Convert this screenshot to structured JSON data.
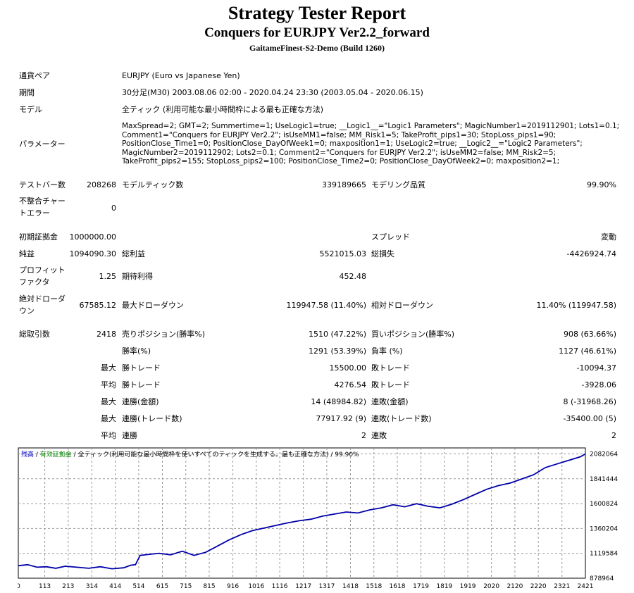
{
  "header": {
    "title": "Strategy Tester Report",
    "subtitle": "Conquers for EURJPY Ver2.2_forward",
    "server": "GaitameFinest-S2-Demo (Build 1260)"
  },
  "info": {
    "pair_label": "通貨ペア",
    "pair_value": "EURJPY (Euro vs Japanese Yen)",
    "period_label": "期間",
    "period_value": "30分足(M30) 2003.08.06 02:00 - 2020.04.24 23:30 (2003.05.04 - 2020.06.15)",
    "model_label": "モデル",
    "model_value": "全ティック (利用可能な最小時間枠による最も正確な方法)",
    "params_label": "パラメーター",
    "params_value": "MaxSpread=2; GMT=2; Summertime=1; UseLogic1=true; __Logic1__=\"Logic1 Parameters\"; MagicNumber1=2019112901; Lots1=0.1; Comment1=\"Conquers for EURJPY Ver2.2\"; isUseMM1=false; MM_Risk1=5; TakeProfit_pips1=30; StopLoss_pips1=90; PositionClose_Time1=0; PositionClose_DayOfWeek1=0; maxposition1=1; UseLogic2=true; __Logic2__=\"Logic2 Parameters\"; MagicNumber2=2019112902; Lots2=0.1; Comment2=\"Conquers for EURJPY Ver2.2\"; isUseMM2=false; MM_Risk2=5; TakeProfit_pips2=155; StopLoss_pips2=100; PositionClose_Time2=0; PositionClose_DayOfWeek2=0; maxposition2=1;"
  },
  "stats": {
    "bars_label": "テストバー数",
    "bars_value": "208268",
    "ticks_label": "モデルティック数",
    "ticks_value": "339189665",
    "quality_label": "モデリング品質",
    "quality_value": "99.90%",
    "mismatch_label_1": "不整合チャー",
    "mismatch_label_2": "トエラー",
    "mismatch_value": "0",
    "deposit_label": "初期証拠金",
    "deposit_value": "1000000.00",
    "spread_label": "スプレッド",
    "spread_value": "変動",
    "net_label": "純益",
    "net_value": "1094090.30",
    "gross_profit_label": "総利益",
    "gross_profit_value": "5521015.03",
    "gross_loss_label": "総損失",
    "gross_loss_value": "-4426924.74",
    "pf_label_1": "プロフィット",
    "pf_label_2": "ファクタ",
    "pf_value": "1.25",
    "expected_label": "期待利得",
    "expected_value": "452.48",
    "abs_dd_label_1": "絶対ドローダ",
    "abs_dd_label_2": "ウン",
    "abs_dd_value": "67585.12",
    "max_dd_label": "最大ドローダウン",
    "max_dd_value": "119947.58 (11.40%)",
    "rel_dd_label": "相対ドローダウン",
    "rel_dd_value": "11.40% (119947.58)",
    "trades_label": "総取引数",
    "trades_value": "2418",
    "short_label": "売りポジション(勝率%)",
    "short_value": "1510 (47.22%)",
    "long_label": "買いポジション(勝率%)",
    "long_value": "908 (63.66%)",
    "win_rate_label": "勝率(%)",
    "win_rate_value": "1291 (53.39%)",
    "loss_rate_label": "負率 (%)",
    "loss_rate_value": "1127 (46.61%)",
    "max_label": "最大",
    "avg_label": "平均",
    "win_trade_label": "勝トレード",
    "loss_trade_label": "敗トレード",
    "max_win_trade": "15500.00",
    "max_loss_trade": "-10094.37",
    "avg_win_trade": "4276.54",
    "avg_loss_trade": "-3928.06",
    "consec_win_amt_label": "連勝(金額)",
    "consec_win_amt_value": "14 (48984.82)",
    "consec_loss_amt_label": "連敗(金額)",
    "consec_loss_amt_value": "8 (-31968.26)",
    "consec_win_cnt_label": "連勝(トレード数)",
    "consec_win_cnt_value": "77917.92 (9)",
    "consec_loss_cnt_label": "連敗(トレード数)",
    "consec_loss_cnt_value": "-35400.00 (5)",
    "avg_win_streak_label": "連勝",
    "avg_win_streak_value": "2",
    "avg_loss_streak_label": "連敗",
    "avg_loss_streak_value": "2"
  },
  "chart_data": {
    "type": "line",
    "legend": {
      "balance": "残高",
      "sep1": " / ",
      "equity": "有効証拠金",
      "sep2": " / ",
      "model": "全ティック(利用可能な最小時間枠を使いすべてのティックを生成する。最も正確な方法)",
      "sep3": " / ",
      "quality": "99.90%"
    },
    "xlim": [
      0,
      2421
    ],
    "ylim": [
      878964,
      2140000
    ],
    "x_ticks": [
      0,
      113,
      213,
      314,
      414,
      514,
      615,
      715,
      815,
      916,
      1016,
      1116,
      1217,
      1317,
      1418,
      1518,
      1618,
      1719,
      1819,
      1919,
      2020,
      2120,
      2220,
      2321,
      2421
    ],
    "y_ticks": [
      878964,
      1119584,
      1360204,
      1600824,
      1841444,
      2082064
    ],
    "series": [
      {
        "color": "#0000aa",
        "x": [
          0,
          40,
          80,
          120,
          160,
          200,
          250,
          300,
          350,
          400,
          450,
          480,
          500,
          520,
          560,
          600,
          650,
          700,
          750,
          800,
          850,
          900,
          950,
          1000,
          1050,
          1100,
          1150,
          1200,
          1250,
          1300,
          1350,
          1400,
          1450,
          1500,
          1550,
          1600,
          1650,
          1700,
          1750,
          1800,
          1850,
          1900,
          1950,
          2000,
          2050,
          2100,
          2150,
          2200,
          2250,
          2300,
          2350,
          2400,
          2421
        ],
        "y": [
          1000000,
          1010000,
          985000,
          990000,
          975000,
          995000,
          985000,
          975000,
          990000,
          970000,
          980000,
          1005000,
          1010000,
          1100000,
          1110000,
          1120000,
          1105000,
          1140000,
          1100000,
          1130000,
          1190000,
          1250000,
          1300000,
          1340000,
          1365000,
          1390000,
          1415000,
          1435000,
          1450000,
          1480000,
          1500000,
          1520000,
          1510000,
          1540000,
          1560000,
          1590000,
          1570000,
          1600000,
          1575000,
          1560000,
          1595000,
          1640000,
          1690000,
          1740000,
          1775000,
          1800000,
          1840000,
          1880000,
          1950000,
          1985000,
          2020000,
          2055000,
          2082064
        ]
      }
    ]
  }
}
